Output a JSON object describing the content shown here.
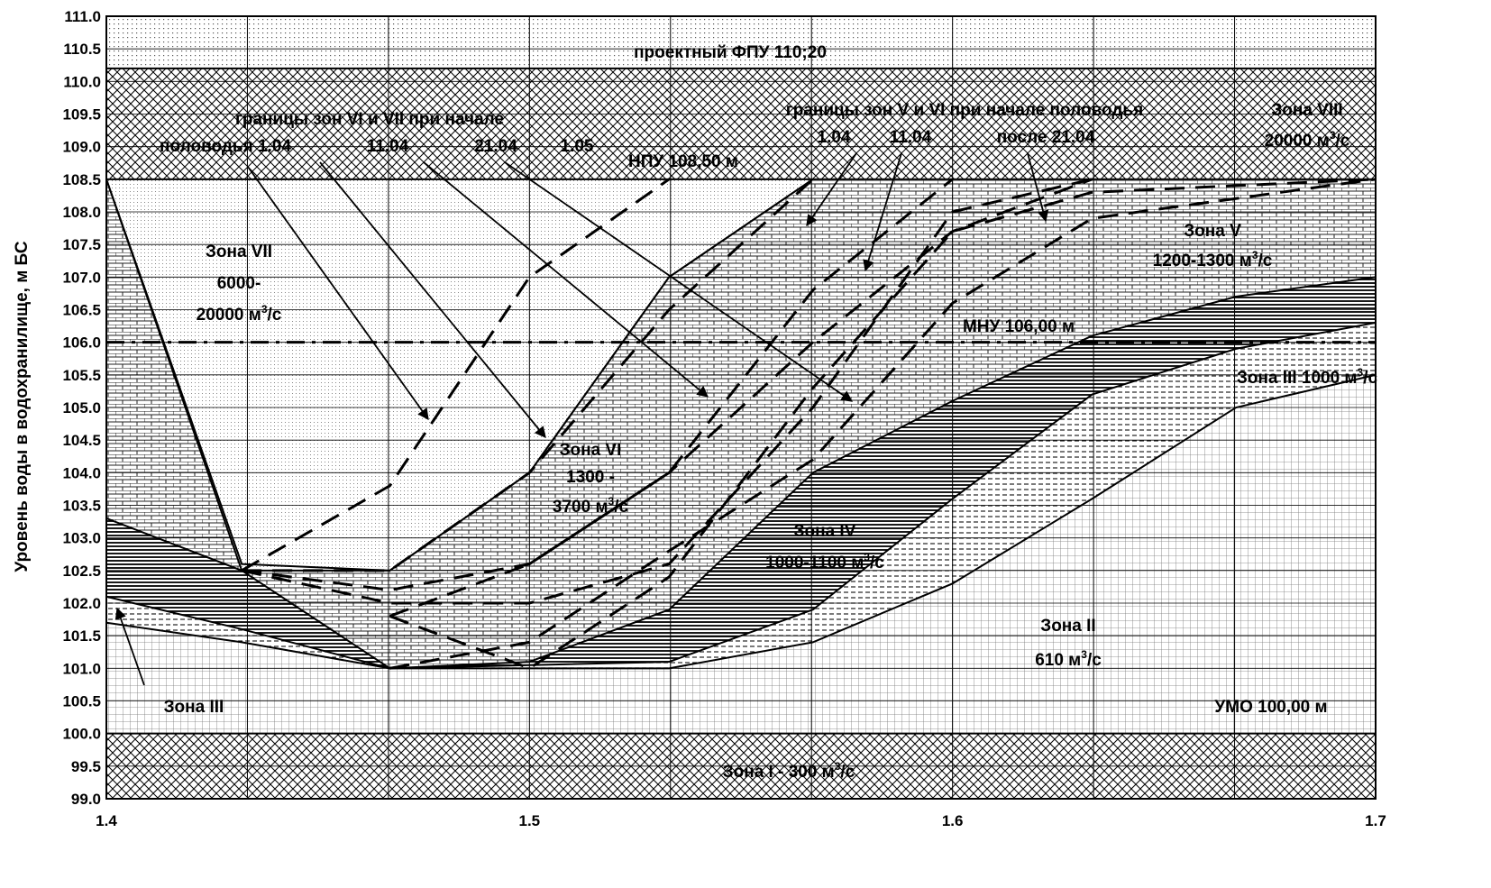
{
  "chart_data": {
    "type": "area",
    "title": "",
    "xlabel": "",
    "ylabel": "Уровень воды в водохранилище, м БС",
    "xlim": [
      1.4,
      1.7
    ],
    "ylim": [
      99.0,
      111.0
    ],
    "x_ticks": [
      "1.4",
      "1.5",
      "1.6",
      "1.7"
    ],
    "y_ticks": [
      "99.0",
      "99.5",
      "100.0",
      "100.5",
      "101.0",
      "101.5",
      "102.0",
      "102.5",
      "103.0",
      "103.5",
      "104.0",
      "104.5",
      "105.0",
      "105.5",
      "106.0",
      "106.5",
      "107.0",
      "107.5",
      "108.0",
      "108.5",
      "109.0",
      "109.5",
      "110.0",
      "110.5",
      "111.0"
    ],
    "reference_levels": [
      {
        "name": "ФПУ",
        "value": 110.2,
        "label": "проектный ФПУ 110;20"
      },
      {
        "name": "НПУ",
        "value": 108.5,
        "label": "НПУ 108,50 м"
      },
      {
        "name": "МНУ",
        "value": 106.0,
        "label": "МНУ 106,00 м"
      },
      {
        "name": "УМО",
        "value": 100.0,
        "label": "УМО 100,00 м"
      }
    ],
    "zones": [
      {
        "name": "Зона I",
        "label": "Зона I - 300 м³/с",
        "range": "99.0-100.0"
      },
      {
        "name": "Зона II",
        "label": [
          "Зона II",
          "610 м³/с"
        ]
      },
      {
        "name": "Зона III",
        "label": "Зона III",
        "label2": "Зона III 1000 м³/с"
      },
      {
        "name": "Зона IV",
        "label": [
          "Зона IV",
          "1000-1100 м³/с"
        ]
      },
      {
        "name": "Зона V",
        "label": [
          "Зона V",
          "1200-1300 м³/с"
        ]
      },
      {
        "name": "Зона VI",
        "label": [
          "Зона VI",
          "1300 -",
          "3700 м³/с"
        ]
      },
      {
        "name": "Зона VII",
        "label": [
          "Зона VII",
          "6000-",
          "20000 м³/с"
        ]
      },
      {
        "name": "Зона VIII",
        "label": [
          "Зона VIII",
          "20000 м³/с"
        ]
      }
    ],
    "boundaries": {
      "zone2_top": [
        [
          1.4,
          101.7
        ],
        [
          1.432,
          101.4
        ],
        [
          1.467,
          101.0
        ],
        [
          1.533,
          101.0
        ],
        [
          1.567,
          101.4
        ],
        [
          1.6,
          102.3
        ],
        [
          1.633,
          103.6
        ],
        [
          1.667,
          105.0
        ],
        [
          1.7,
          105.5
        ]
      ],
      "zone3_top": [
        [
          1.4,
          102.1
        ],
        [
          1.432,
          101.6
        ],
        [
          1.467,
          101.0
        ],
        [
          1.533,
          101.1
        ],
        [
          1.567,
          101.9
        ],
        [
          1.6,
          103.6
        ],
        [
          1.633,
          105.2
        ],
        [
          1.667,
          105.9
        ],
        [
          1.7,
          106.3
        ]
      ],
      "zone4_top": [
        [
          1.4,
          103.3
        ],
        [
          1.432,
          102.5
        ],
        [
          1.467,
          101.0
        ],
        [
          1.5,
          101.1
        ],
        [
          1.533,
          101.9
        ],
        [
          1.567,
          104.0
        ],
        [
          1.6,
          105.1
        ],
        [
          1.633,
          106.1
        ],
        [
          1.667,
          106.7
        ],
        [
          1.7,
          107.0
        ]
      ],
      "zone6_bottom": [
        [
          1.4,
          108.5
        ],
        [
          1.432,
          102.6
        ],
        [
          1.467,
          102.5
        ],
        [
          1.5,
          104.0
        ],
        [
          1.533,
          107.0
        ],
        [
          1.567,
          108.5
        ]
      ],
      "zone7_bottom": [
        [
          1.4,
          108.5
        ],
        [
          1.432,
          102.5
        ],
        [
          1.467,
          102.5
        ],
        [
          1.5,
          104.0
        ],
        [
          1.533,
          107.0
        ],
        [
          1.567,
          108.5
        ]
      ]
    },
    "dashed_lines": [
      {
        "name": "boundary VI/VII start 1.04",
        "points": [
          [
            1.432,
            102.5
          ],
          [
            1.467,
            103.8
          ],
          [
            1.5,
            107.0
          ],
          [
            1.533,
            108.5
          ]
        ]
      },
      {
        "name": "boundary VI/VII start 11.04",
        "points": [
          [
            1.432,
            102.5
          ],
          [
            1.467,
            102.5
          ],
          [
            1.5,
            104.0
          ],
          [
            1.533,
            106.5
          ],
          [
            1.567,
            108.5
          ]
        ]
      },
      {
        "name": "boundary VI/VII start 21.04",
        "points": [
          [
            1.432,
            102.5
          ],
          [
            1.467,
            102.2
          ],
          [
            1.5,
            102.6
          ],
          [
            1.533,
            104.0
          ],
          [
            1.567,
            106.8
          ],
          [
            1.6,
            108.5
          ]
        ]
      },
      {
        "name": "boundary VI/VII start 1.05",
        "points": [
          [
            1.432,
            102.5
          ],
          [
            1.467,
            102.0
          ],
          [
            1.5,
            102.0
          ],
          [
            1.533,
            102.6
          ],
          [
            1.567,
            105.0
          ],
          [
            1.6,
            108.0
          ],
          [
            1.633,
            108.5
          ]
        ]
      },
      {
        "name": "boundary V/VI start 1.04",
        "points": [
          [
            1.467,
            101.8
          ],
          [
            1.5,
            102.6
          ],
          [
            1.533,
            104.0
          ],
          [
            1.567,
            106.0
          ],
          [
            1.6,
            107.7
          ],
          [
            1.633,
            108.5
          ]
        ]
      },
      {
        "name": "boundary V/VI start 11.04",
        "points": [
          [
            1.467,
            101.8
          ],
          [
            1.5,
            101.0
          ],
          [
            1.533,
            102.4
          ],
          [
            1.567,
            105.3
          ],
          [
            1.6,
            107.7
          ],
          [
            1.633,
            108.3
          ],
          [
            1.7,
            108.5
          ]
        ]
      },
      {
        "name": "boundary V/VI after 21.04",
        "points": [
          [
            1.467,
            101.0
          ],
          [
            1.5,
            101.4
          ],
          [
            1.533,
            102.8
          ],
          [
            1.567,
            104.2
          ],
          [
            1.6,
            106.6
          ],
          [
            1.633,
            107.9
          ],
          [
            1.7,
            108.5
          ]
        ]
      }
    ],
    "annotations": [
      {
        "id": "fpu",
        "text": "проектный ФПУ 110;20"
      },
      {
        "id": "npu",
        "text": "НПУ 108,50 м"
      },
      {
        "id": "mnu",
        "text": "МНУ 106,00 м"
      },
      {
        "id": "umo",
        "text": "УМО 100,00 м"
      },
      {
        "id": "vivii_head",
        "text": "границы зон VI и VII при начале"
      },
      {
        "id": "vivii_line2",
        "text": "половодья 1.04"
      },
      {
        "id": "vivii_1104",
        "text": "11.04"
      },
      {
        "id": "vivii_2104",
        "text": "21.04"
      },
      {
        "id": "vivii_105",
        "text": "1.05"
      },
      {
        "id": "vvi_head",
        "text": "границы зон V и VI при начале половодья"
      },
      {
        "id": "vvi_104",
        "text": "1.04"
      },
      {
        "id": "vvi_1104",
        "text": "11.04"
      },
      {
        "id": "vvi_2104",
        "text": "после 21.04"
      },
      {
        "id": "z8a",
        "text": "Зона VIII"
      },
      {
        "id": "z8b",
        "text": "20000 м³/с"
      },
      {
        "id": "z7a",
        "text": "Зона VII"
      },
      {
        "id": "z7b",
        "text": "6000-"
      },
      {
        "id": "z7c",
        "text": "20000 м³/с"
      },
      {
        "id": "z6a",
        "text": "Зона VI"
      },
      {
        "id": "z6b",
        "text": "1300 -"
      },
      {
        "id": "z6c",
        "text": "3700 м³/с"
      },
      {
        "id": "z5a",
        "text": "Зона V"
      },
      {
        "id": "z5b",
        "text": "1200-1300 м³/с"
      },
      {
        "id": "z4a",
        "text": "Зона IV"
      },
      {
        "id": "z4b",
        "text": "1000-1100 м³/с"
      },
      {
        "id": "z3a",
        "text": "Зона III 1000 м³/с"
      },
      {
        "id": "z3b",
        "text": "Зона III"
      },
      {
        "id": "z2a",
        "text": "Зона II"
      },
      {
        "id": "z2b",
        "text": "610 м³/с"
      },
      {
        "id": "z1",
        "text": "Зона I - 300 м³/с"
      }
    ]
  }
}
